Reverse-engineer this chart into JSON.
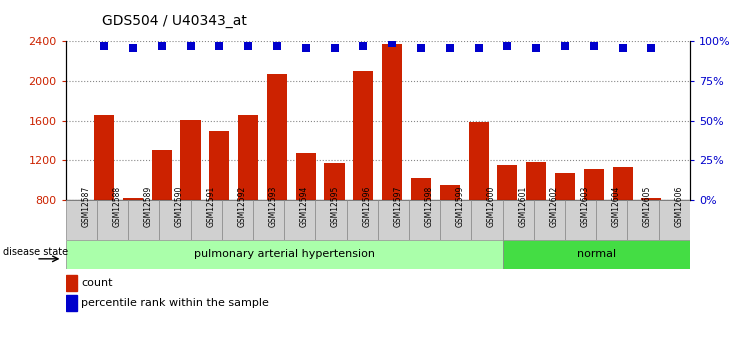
{
  "title": "GDS504 / U40343_at",
  "samples": [
    "GSM12587",
    "GSM12588",
    "GSM12589",
    "GSM12590",
    "GSM12591",
    "GSM12592",
    "GSM12593",
    "GSM12594",
    "GSM12595",
    "GSM12596",
    "GSM12597",
    "GSM12598",
    "GSM12599",
    "GSM12600",
    "GSM12601",
    "GSM12602",
    "GSM12603",
    "GSM12604",
    "GSM12605",
    "GSM12606"
  ],
  "counts": [
    1660,
    820,
    1310,
    1610,
    1500,
    1660,
    2070,
    1270,
    1175,
    2100,
    2370,
    1020,
    950,
    1590,
    1150,
    1185,
    1070,
    1110,
    1130,
    820
  ],
  "percentiles": [
    97,
    96,
    97,
    97,
    97,
    97,
    97,
    96,
    96,
    97,
    99,
    96,
    96,
    96,
    97,
    96,
    97,
    97,
    96,
    96
  ],
  "disease_groups": [
    {
      "label": "pulmonary arterial hypertension",
      "start": 0,
      "end": 14,
      "color": "#aaffaa"
    },
    {
      "label": "normal",
      "start": 14,
      "end": 20,
      "color": "#44dd44"
    }
  ],
  "ylim_left": [
    800,
    2400
  ],
  "ylim_right": [
    0,
    100
  ],
  "yticks_left": [
    800,
    1200,
    1600,
    2000,
    2400
  ],
  "yticks_right": [
    0,
    25,
    50,
    75,
    100
  ],
  "bar_color": "#cc2200",
  "dot_color": "#0000cc",
  "bg_color": "#ffffff",
  "grid_color": "#555555",
  "disease_state_label": "disease state",
  "n_pah": 14,
  "n_total": 20
}
